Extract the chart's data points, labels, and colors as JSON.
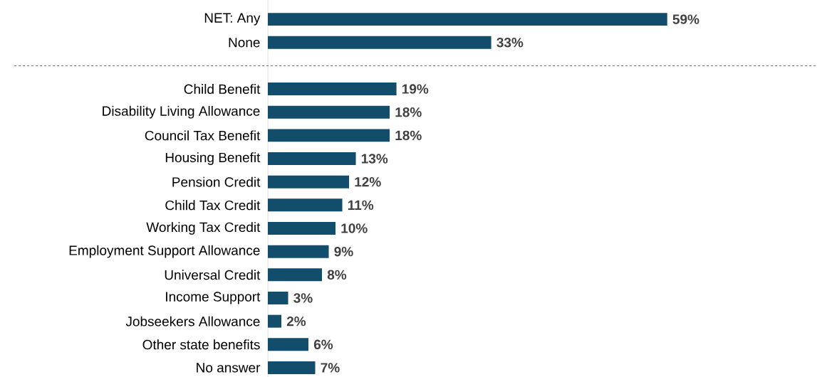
{
  "chart_data": {
    "type": "bar",
    "orientation": "horizontal",
    "categories": [
      "NET: Any",
      "None",
      null,
      "Child Benefit",
      "Disability Living Allowance",
      "Council Tax Benefit",
      "Housing Benefit",
      "Pension Credit",
      "Child Tax Credit",
      "Working Tax Credit",
      "Employment Support Allowance",
      "Universal Credit",
      "Income Support",
      "Jobseekers Allowance",
      "Other state benefits",
      "No answer"
    ],
    "values": [
      59,
      33,
      null,
      19,
      18,
      18,
      13,
      12,
      11,
      10,
      9,
      8,
      3,
      2,
      6,
      7
    ],
    "value_labels": [
      "59%",
      "33%",
      null,
      "19%",
      "18%",
      "18%",
      "13%",
      "12%",
      "11%",
      "10%",
      "9%",
      "8%",
      "3%",
      "2%",
      "6%",
      "7%"
    ],
    "color": "#124e6b"
  }
}
